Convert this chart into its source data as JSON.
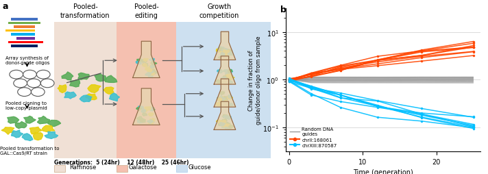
{
  "panel_b": {
    "xlabel": "Time (generation)",
    "ylabel": "Change in fraction of\nguide/donor oligo from sample",
    "gray_color": "#999999",
    "orange_color": "#ff4500",
    "cyan_color": "#00bfff",
    "bg_raffinose": "#f5ddd0",
    "bg_galactose": "#f5c0b0",
    "bg_glucose": "#cde0f0"
  },
  "panel_a": {
    "stages": [
      "Pooled-\ntransformation",
      "Pooled-\nediting",
      "Growth\ncompetition"
    ],
    "left_labels": [
      "Array synthesis of\ndonor-guide oligos",
      "Pooled cloning to\nlow-copy plasmid",
      "Pooled transformation to\nGAL::Cas9/RT strain"
    ],
    "generation_text": "Generations:  5 (24hr)    12 (48hr)    25 (46hr)",
    "sugar_labels": [
      "Raffinose",
      "Galactose",
      "Glucose"
    ],
    "bg_colors": [
      "#f0e0d5",
      "#f5c0b0",
      "#cde0f0"
    ],
    "dna_colors": [
      "#4472c4",
      "#70ad47",
      "#ed7d31",
      "#ffc000",
      "#00b0f0",
      "#7030a0",
      "#ff0000",
      "#002060"
    ],
    "cell_colors_green": "#5aad5a",
    "cell_colors_yellow": "#e6d010",
    "cell_colors_cyan": "#40c0d0",
    "flask_fill": "#d4a96a",
    "flask_edge": "#8B6040"
  }
}
